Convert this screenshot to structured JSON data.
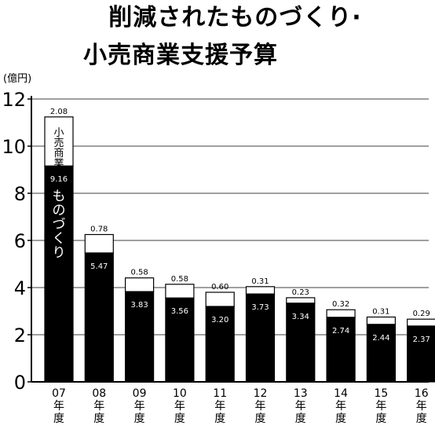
{
  "title_lines": [
    "削減されたものづくり·",
    "小売商業支援予算"
  ],
  "chart_data": {
    "type": "bar",
    "stacked": true,
    "unit_label": "(億円)",
    "categories": [
      [
        "07",
        "年",
        "度"
      ],
      [
        "08",
        "年",
        "度"
      ],
      [
        "09",
        "年",
        "度"
      ],
      [
        "10",
        "年",
        "度"
      ],
      [
        "11",
        "年",
        "度"
      ],
      [
        "12",
        "年",
        "度"
      ],
      [
        "13",
        "年",
        "度"
      ],
      [
        "14",
        "年",
        "度"
      ],
      [
        "15",
        "年",
        "度"
      ],
      [
        "16",
        "年",
        "度"
      ]
    ],
    "series": [
      {
        "name": "ものづくり",
        "color": "#000000",
        "values": [
          9.16,
          5.47,
          3.83,
          3.56,
          3.2,
          3.73,
          3.34,
          2.74,
          2.44,
          2.37
        ],
        "value_labels": [
          "9.16",
          "5.47",
          "3.83",
          "3.56",
          "3.20",
          "3.73",
          "3.34",
          "2.74",
          "2.44",
          "2.37"
        ]
      },
      {
        "name": "小売商業",
        "color": "#ffffff",
        "values": [
          2.08,
          0.78,
          0.58,
          0.58,
          0.6,
          0.31,
          0.23,
          0.32,
          0.31,
          0.29
        ],
        "value_labels": [
          "2.08",
          "0.78",
          "0.58",
          "0.58",
          "0.60",
          "0.31",
          "0.23",
          "0.32",
          "0.31",
          "0.29"
        ]
      }
    ],
    "in_bar_labels": {
      "bottom_series": [
        "も",
        "の",
        "づ",
        "く",
        "り"
      ],
      "top_series": [
        "小",
        "売",
        "商",
        "業"
      ]
    },
    "yticks": [
      "0",
      "2",
      "4",
      "6",
      "8",
      "10",
      "12"
    ],
    "ylim": [
      0,
      12
    ],
    "grid": true
  }
}
